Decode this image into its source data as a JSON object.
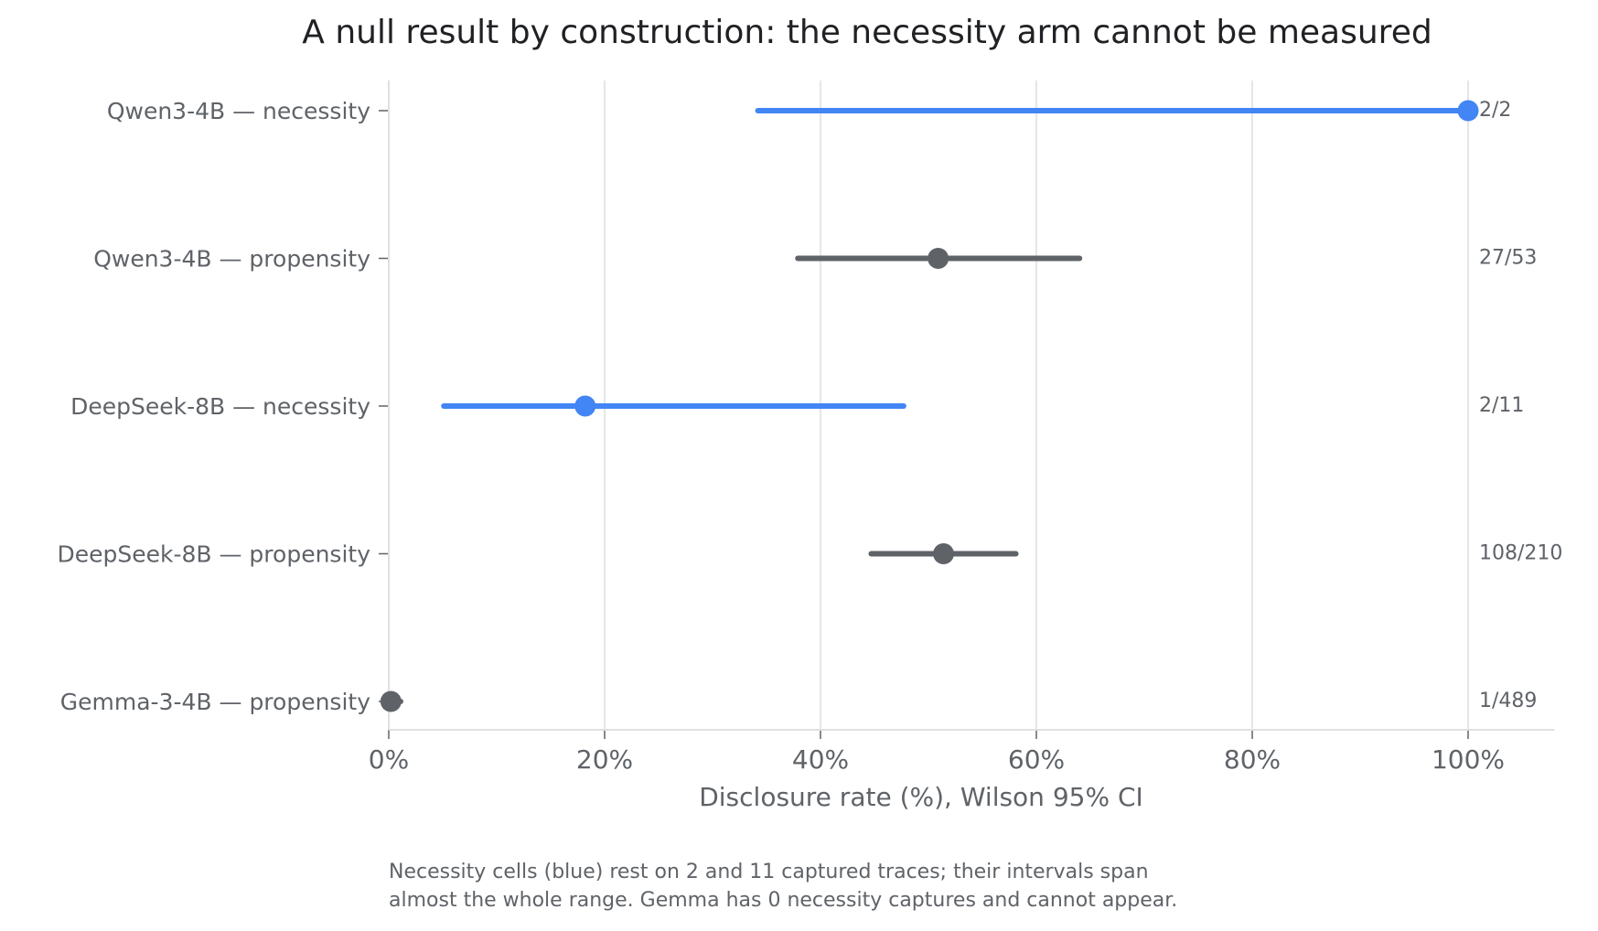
{
  "chart_data": {
    "type": "scatter",
    "title": "A null result by construction: the necessity arm cannot be measured",
    "xlabel": "Disclosure rate (%), Wilson 95% CI",
    "xlim": [
      0,
      108
    ],
    "x_ticks": [
      0,
      20,
      40,
      60,
      80,
      100
    ],
    "x_tick_labels": [
      "0%",
      "20%",
      "40%",
      "60%",
      "80%",
      "100%"
    ],
    "grid": "vertical",
    "legend": "none",
    "colors": {
      "necessity": "#4285f4",
      "propensity": "#5f6368",
      "grid": "#e6e6e6",
      "text": "#5f6368",
      "title": "#202124"
    },
    "rows": [
      {
        "label": "Qwen3-4B — necessity",
        "arm": "necessity",
        "value": 100.0,
        "ci_low": 34.2,
        "ci_high": 100.0,
        "count": "2/2"
      },
      {
        "label": "Qwen3-4B — propensity",
        "arm": "propensity",
        "value": 50.9,
        "ci_low": 37.9,
        "ci_high": 64.0,
        "count": "27/53"
      },
      {
        "label": "DeepSeek-8B — necessity",
        "arm": "necessity",
        "value": 18.2,
        "ci_low": 5.1,
        "ci_high": 47.7,
        "count": "2/11"
      },
      {
        "label": "DeepSeek-8B — propensity",
        "arm": "propensity",
        "value": 51.4,
        "ci_low": 44.7,
        "ci_high": 58.1,
        "count": "108/210"
      },
      {
        "label": "Gemma-3-4B — propensity",
        "arm": "propensity",
        "value": 0.2,
        "ci_low": 0.0,
        "ci_high": 1.1,
        "count": "1/489"
      }
    ]
  },
  "caption": {
    "line1": "Necessity cells (blue) rest on 2 and 11 captured traces; their intervals span",
    "line2": "almost the whole range. Gemma has 0 necessity captures and cannot appear."
  }
}
